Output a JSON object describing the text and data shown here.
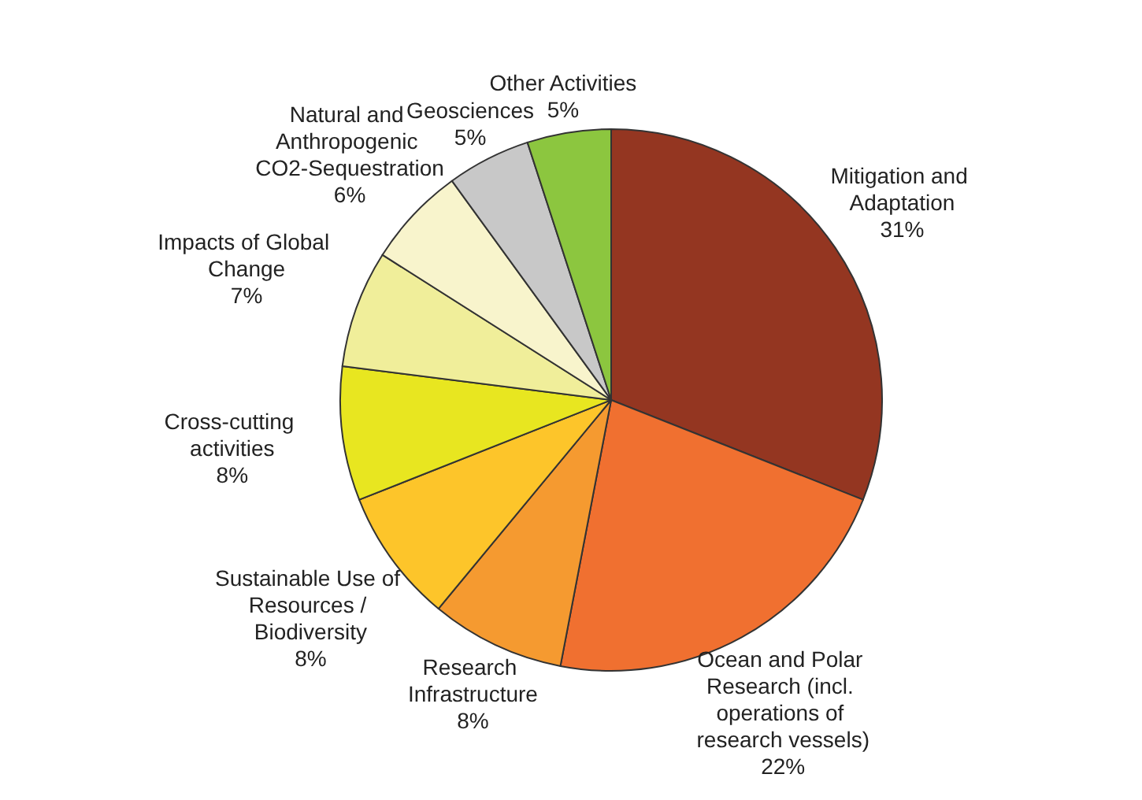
{
  "chart_data": {
    "type": "pie",
    "categories": [
      "Mitigation and Adaptation",
      "Ocean and Polar Research (incl. operations of research vessels)",
      "Research Infrastructure",
      "Sustainable Use of Resources / Biodiversity",
      "Cross-cutting activities",
      "Impacts of Global Change",
      "Natural and Anthropogenic CO2-Sequestration",
      "Geosciences",
      "Other Activities"
    ],
    "values": [
      31,
      22,
      8,
      8,
      8,
      7,
      6,
      5,
      5
    ],
    "value_labels": [
      "31%",
      "22%",
      "8%",
      "8%",
      "8%",
      "7%",
      "6%",
      "5%",
      "5%"
    ],
    "colors": [
      "#943621",
      "#f07030",
      "#f59a30",
      "#fdc52a",
      "#e8e620",
      "#f0ee9a",
      "#f8f4cc",
      "#c8c8c8",
      "#8cc63f"
    ],
    "legend": false
  }
}
